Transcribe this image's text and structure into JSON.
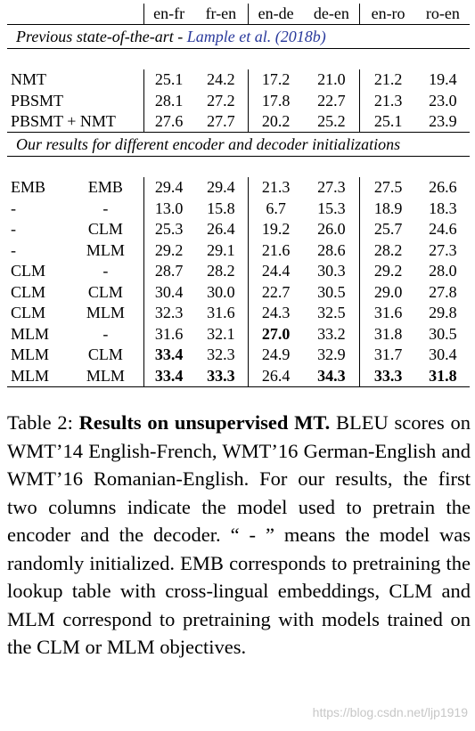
{
  "table": {
    "headers": [
      "en-fr",
      "fr-en",
      "en-de",
      "de-en",
      "en-ro",
      "ro-en"
    ],
    "section1": {
      "title_prefix": "Previous state-of-the-art - ",
      "citation": "Lample et al. (2018b)",
      "rows": [
        {
          "enc": "NMT",
          "dec": "",
          "vals": [
            "25.1",
            "24.2",
            "17.2",
            "21.0",
            "21.2",
            "19.4"
          ]
        },
        {
          "enc": "PBSMT",
          "dec": "",
          "vals": [
            "28.1",
            "27.2",
            "17.8",
            "22.7",
            "21.3",
            "23.0"
          ]
        },
        {
          "enc": "PBSMT + NMT",
          "dec": "",
          "vals": [
            "27.6",
            "27.7",
            "20.2",
            "25.2",
            "25.1",
            "23.9"
          ]
        }
      ]
    },
    "section2": {
      "title": "Our results for different encoder and decoder initializations",
      "rows": [
        {
          "enc": "EMB",
          "dec": "EMB",
          "vals": [
            "29.4",
            "29.4",
            "21.3",
            "27.3",
            "27.5",
            "26.6"
          ],
          "bold": []
        },
        {
          "enc": "-",
          "dec": "-",
          "vals": [
            "13.0",
            "15.8",
            "6.7",
            "15.3",
            "18.9",
            "18.3"
          ],
          "bold": []
        },
        {
          "enc": "-",
          "dec": "CLM",
          "vals": [
            "25.3",
            "26.4",
            "19.2",
            "26.0",
            "25.7",
            "24.6"
          ],
          "bold": []
        },
        {
          "enc": "-",
          "dec": "MLM",
          "vals": [
            "29.2",
            "29.1",
            "21.6",
            "28.6",
            "28.2",
            "27.3"
          ],
          "bold": []
        },
        {
          "enc": "CLM",
          "dec": "-",
          "vals": [
            "28.7",
            "28.2",
            "24.4",
            "30.3",
            "29.2",
            "28.0"
          ],
          "bold": []
        },
        {
          "enc": "CLM",
          "dec": "CLM",
          "vals": [
            "30.4",
            "30.0",
            "22.7",
            "30.5",
            "29.0",
            "27.8"
          ],
          "bold": []
        },
        {
          "enc": "CLM",
          "dec": "MLM",
          "vals": [
            "32.3",
            "31.6",
            "24.3",
            "32.5",
            "31.6",
            "29.8"
          ],
          "bold": []
        },
        {
          "enc": "MLM",
          "dec": "-",
          "vals": [
            "31.6",
            "32.1",
            "27.0",
            "33.2",
            "31.8",
            "30.5"
          ],
          "bold": [
            2
          ]
        },
        {
          "enc": "MLM",
          "dec": "CLM",
          "vals": [
            "33.4",
            "32.3",
            "24.9",
            "32.9",
            "31.7",
            "30.4"
          ],
          "bold": [
            0
          ]
        },
        {
          "enc": "MLM",
          "dec": "MLM",
          "vals": [
            "33.4",
            "33.3",
            "26.4",
            "34.3",
            "33.3",
            "31.8"
          ],
          "bold": [
            0,
            1,
            3,
            4,
            5
          ]
        }
      ]
    }
  },
  "caption": {
    "label": "Table 2: ",
    "bold_title": "Results on unsupervised MT.",
    "body": " BLEU scores on WMT’14 English-French, WMT’16 German-English and WMT’16 Romanian-English. For our results, the first two columns indicate the model used to pretrain the encoder and the decoder. “ - ” means the model was randomly initialized. EMB corresponds to pretraining the lookup table with cross-lingual embeddings, CLM and MLM correspond to pretraining with models trained on the CLM or MLM objectives."
  },
  "watermark": "https://blog.csdn.net/ljp1919"
}
